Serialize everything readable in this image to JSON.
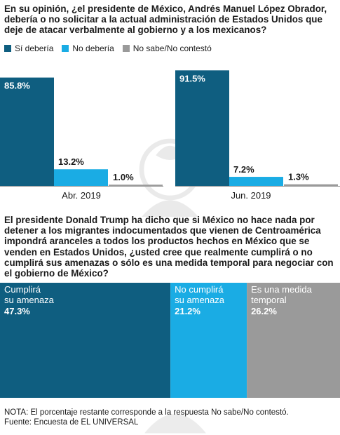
{
  "colors": {
    "si": "#0f5e80",
    "no": "#1aace4",
    "ns": "#9a9a9a"
  },
  "icons": {
    "watermark": "eagle-seal-icon"
  },
  "chart_data": [
    {
      "type": "bar",
      "title": "En su opinión, ¿el presidente de México, Andrés Manuel López Obrador, debería o no solicitar a la actual administración de Estados Unidos que deje de atacar verbalmente al gobierno y a los mexicanos?",
      "categories": [
        "Abr. 2019",
        "Jun. 2019"
      ],
      "series": [
        {
          "name": "Sí debería",
          "values": [
            85.8,
            91.5
          ],
          "labels": [
            "85.8%",
            "91.5%"
          ]
        },
        {
          "name": "No debería",
          "values": [
            13.2,
            7.2
          ],
          "labels": [
            "13.2%",
            "7.2%"
          ]
        },
        {
          "name": "No sabe/No contestó",
          "values": [
            1.0,
            1.3
          ],
          "labels": [
            "1.0%",
            "1.3%"
          ]
        }
      ],
      "ylim": [
        0,
        100
      ]
    },
    {
      "type": "bar",
      "title": "El presidente Donald Trump ha dicho que si México no hace nada por detener a los migrantes indocumentados que vienen de Centroamérica impondrá aranceles a todos los productos hechos en México que se venden en Estados Unidos, ¿usted cree que realmente cumplirá o no cumplirá sus amenazas o sólo es una medida temporal para negociar con el gobierno de México?",
      "segments": [
        {
          "line1": "Cumplirá",
          "line2": "su amenaza",
          "value": 47.3,
          "label": "47.3%"
        },
        {
          "line1": "No cumplirá",
          "line2": "su amenaza",
          "value": 21.2,
          "label": "21.2%"
        },
        {
          "line1": "Es una medida",
          "line2": "temporal",
          "value": 26.2,
          "label": "26.2%"
        }
      ]
    }
  ],
  "note": "NOTA: El porcentaje restante corresponde a la respuesta No sabe/No contestó.",
  "source": "Fuente: Encuesta de EL UNIVERSAL"
}
